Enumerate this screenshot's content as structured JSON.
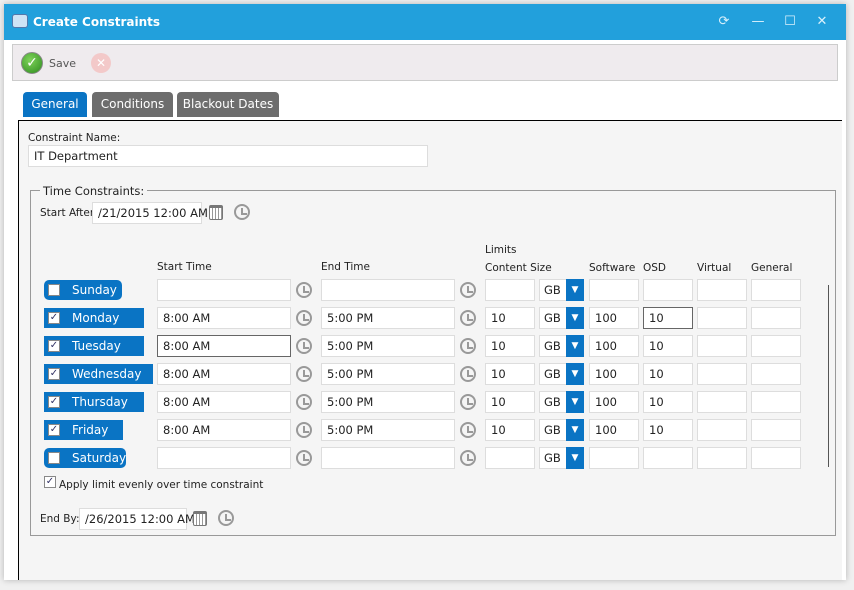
{
  "window": {
    "title": "Create Constraints",
    "controls": [
      "refresh",
      "minimize",
      "maximize",
      "close"
    ]
  },
  "toolbar": {
    "save_label": "Save"
  },
  "tabs": [
    {
      "label": "General",
      "active": true
    },
    {
      "label": "Conditions"
    },
    {
      "label": "Blackout Dates"
    }
  ],
  "form": {
    "constraint_name_label": "Constraint Name:",
    "constraint_name": "IT Department",
    "group_label": "Time Constraints:",
    "start_after_label": "Start After:",
    "start_after": "/21/2015 12:00 AM",
    "end_by_label": "End By:",
    "end_by": "/26/2015 12:00 AM",
    "apply_evenly_label": "Apply limit evenly over time constraint",
    "apply_evenly": true
  },
  "columns": {
    "start_time": "Start Time",
    "end_time": "End Time",
    "limits": "Limits",
    "content_size": "Content Size",
    "software": "Software",
    "osd": "OSD",
    "virtual": "Virtual",
    "general": "General"
  },
  "days": [
    {
      "day": "Sunday",
      "checked": false,
      "start": "",
      "end": "",
      "content": "",
      "unit": "GB",
      "software": "",
      "osd": "",
      "virtual": "",
      "general": ""
    },
    {
      "day": "Monday",
      "checked": true,
      "start": "8:00 AM",
      "end": "5:00 PM",
      "content": "10",
      "unit": "GB",
      "software": "100",
      "osd": "10",
      "virtual": "",
      "general": ""
    },
    {
      "day": "Tuesday",
      "checked": true,
      "start": "8:00 AM",
      "end": "5:00 PM",
      "content": "10",
      "unit": "GB",
      "software": "100",
      "osd": "10",
      "virtual": "",
      "general": ""
    },
    {
      "day": "Wednesday",
      "checked": true,
      "start": "8:00 AM",
      "end": "5:00 PM",
      "content": "10",
      "unit": "GB",
      "software": "100",
      "osd": "10",
      "virtual": "",
      "general": ""
    },
    {
      "day": "Thursday",
      "checked": true,
      "start": "8:00 AM",
      "end": "5:00 PM",
      "content": "10",
      "unit": "GB",
      "software": "100",
      "osd": "10",
      "virtual": "",
      "general": ""
    },
    {
      "day": "Friday",
      "checked": true,
      "start": "8:00 AM",
      "end": "5:00 PM",
      "content": "10",
      "unit": "GB",
      "software": "100",
      "osd": "10",
      "virtual": "",
      "general": ""
    },
    {
      "day": "Saturday",
      "checked": false,
      "start": "",
      "end": "",
      "content": "",
      "unit": "GB",
      "software": "",
      "osd": "",
      "virtual": "",
      "general": ""
    }
  ],
  "colors": {
    "titlebar": "#22a0dc",
    "accent": "#0a74c4",
    "tab_inactive": "#6d6d6d"
  }
}
